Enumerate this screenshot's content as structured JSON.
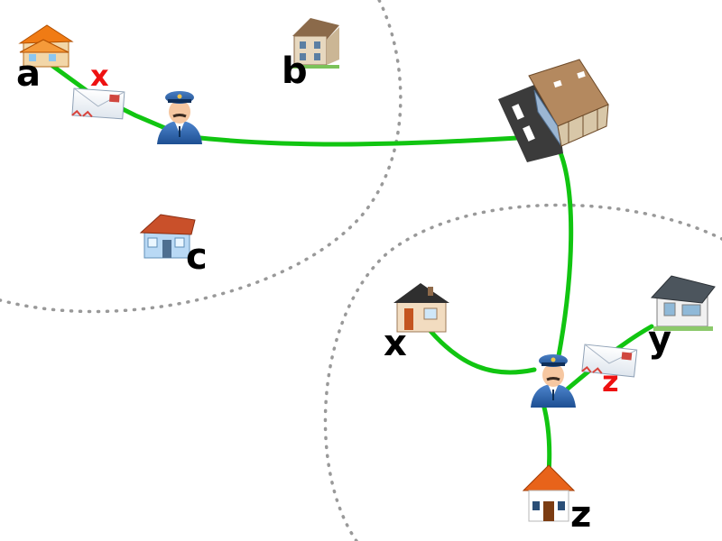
{
  "colors": {
    "route": "#11c511",
    "label": "#000000",
    "letter_tag": "#ee1111",
    "region_border": "#999999"
  },
  "regions": [
    {
      "name": "left-neighborhood",
      "houses": [
        "a",
        "b",
        "c"
      ]
    },
    {
      "name": "right-neighborhood",
      "houses": [
        "x",
        "y",
        "z"
      ]
    }
  ],
  "houses": {
    "a": {
      "label": "a",
      "icon": "orange-house-icon"
    },
    "b": {
      "label": "b",
      "icon": "mansion-icon"
    },
    "c": {
      "label": "c",
      "icon": "blue-cottage-icon"
    },
    "x": {
      "label": "x",
      "icon": "brick-house-icon"
    },
    "y": {
      "label": "y",
      "icon": "grey-house-icon"
    },
    "z": {
      "label": "z",
      "icon": "orange-roof-house-icon"
    }
  },
  "post_office": {
    "icon": "post-office-building-icon"
  },
  "postmen": [
    {
      "name": "left-postman",
      "icon": "postman-icon"
    },
    {
      "name": "right-postman",
      "icon": "postman-icon"
    }
  ],
  "letters": [
    {
      "name": "letter-to-x",
      "icon": "envelope-icon",
      "addressee": "x"
    },
    {
      "name": "letter-to-z",
      "icon": "envelope-icon",
      "addressee": "z"
    }
  ]
}
